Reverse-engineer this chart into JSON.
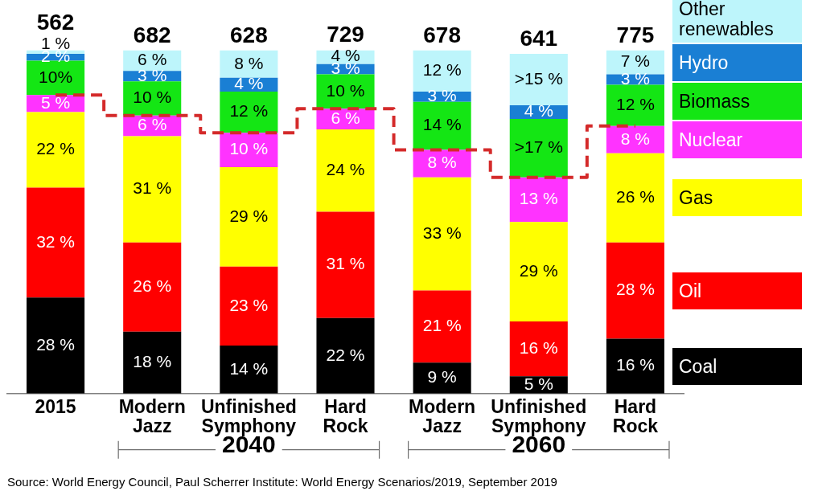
{
  "chart_data": {
    "type": "bar",
    "stacked": true,
    "legend": "right",
    "categories": [
      "2015",
      "Modern Jazz",
      "Unfinished Symphony",
      "Hard Rock",
      "Modern Jazz",
      "Unfinished Symphony",
      "Hard Rock"
    ],
    "series": [
      {
        "name": "Coal",
        "color": "#000000",
        "values": [
          28,
          18,
          14,
          22,
          9,
          5,
          16
        ],
        "value_labels": [
          "28 %",
          "18 %",
          "14 %",
          "22 %",
          "9 %",
          "5 %",
          "16 %"
        ]
      },
      {
        "name": "Oil",
        "color": "#ff0000",
        "values": [
          32,
          26,
          23,
          31,
          21,
          16,
          28
        ],
        "value_labels": [
          "32 %",
          "26 %",
          "23 %",
          "31 %",
          "21 %",
          "16 %",
          "28 %"
        ]
      },
      {
        "name": "Gas",
        "color": "#ffff00",
        "values": [
          22,
          31,
          29,
          24,
          33,
          29,
          26
        ],
        "value_labels": [
          "22 %",
          "31 %",
          "29 %",
          "24 %",
          "33 %",
          "29 %",
          "26 %"
        ]
      },
      {
        "name": "Nuclear",
        "color": "#ff33ff",
        "values": [
          5,
          6,
          10,
          6,
          8,
          13,
          8
        ],
        "value_labels": [
          "5 %",
          "6 %",
          "10 %",
          "6 %",
          "8 %",
          "13 %",
          "8 %"
        ]
      },
      {
        "name": "Biomass",
        "color": "#14e614",
        "values": [
          10,
          10,
          12,
          10,
          14,
          17,
          12
        ],
        "value_labels": [
          "10%",
          "10 %",
          "12 %",
          "10 %",
          "14 %",
          ">17 %",
          "12 %"
        ]
      },
      {
        "name": "Hydro",
        "color": "#1a7fd4",
        "values": [
          2,
          3,
          4,
          3,
          3,
          4,
          3
        ],
        "value_labels": [
          "2 %",
          "3 %",
          "4 %",
          "3 %",
          "3 %",
          "4 %",
          "3 %"
        ]
      },
      {
        "name": "Other renewables",
        "color": "#bdf5fb",
        "values": [
          1,
          6,
          8,
          4,
          12,
          15,
          7
        ],
        "value_labels": [
          "1 %",
          "6 %",
          "8 %",
          "4 %",
          "12 %",
          ">15 %",
          "7 %"
        ]
      },
      {
        "type": "step",
        "color": "#d42a2a",
        "line_style": "dashed",
        "values": [
          87,
          81,
          76,
          83,
          71,
          63,
          78
        ]
      }
    ],
    "annotations": [
      "562",
      "682",
      "628",
      "729",
      "678",
      "641",
      "775",
      "2040",
      "2060",
      "Source: World Energy Council, Paul Scherrer Institute: World Energy Scenarios/2019, September 2019"
    ]
  }
}
